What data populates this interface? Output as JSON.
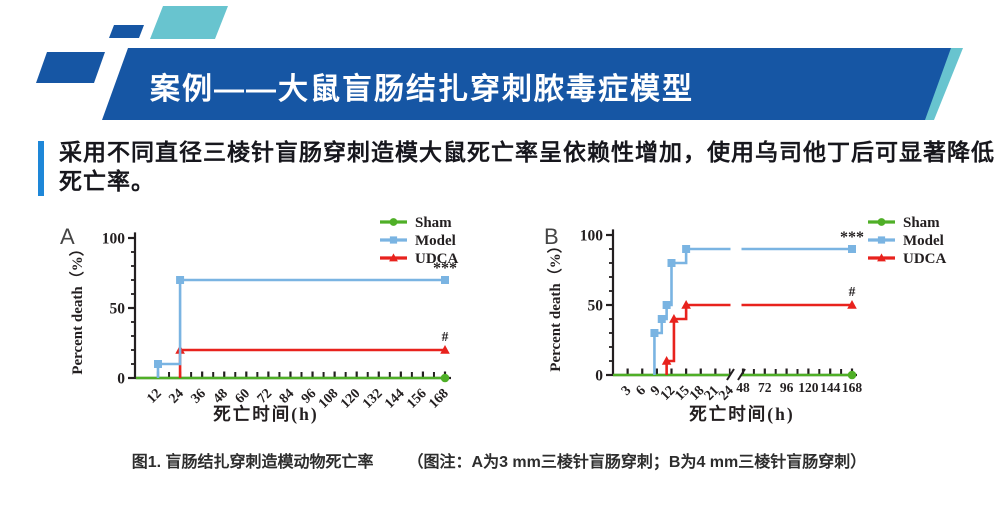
{
  "theme": {
    "banner_blue": "#1656a4",
    "teal": "#68c4cf",
    "accent_blue": "#1e87d8",
    "intro_text_color": "#17171d",
    "axis_color": "#231f20",
    "caption_color": "#2d2d2d",
    "sham_green": "#4faf27",
    "model_blue": "#7ab4e2",
    "udca_red": "#e8221d"
  },
  "header": {
    "title": "案例——大鼠盲肠结扎穿刺脓毒症模型"
  },
  "intro": {
    "line1": "采用不同直径三棱针盲肠穿刺造模大鼠死亡率呈依赖性增加，使用乌司他丁后可显著降低",
    "line2": "死亡率。"
  },
  "figure": {
    "caption_title": "图1. 盲肠结扎穿刺造模动物死亡率",
    "caption_note": "（图注：A为3 mm三棱针盲肠穿刺；B为4 mm三棱针盲肠穿刺）"
  },
  "chart_data": [
    {
      "panel": "A",
      "type": "line",
      "subtype": "step-survival",
      "xlabel": "死亡时间(h)",
      "ylabel": "Percent death（%）",
      "ylim": [
        0,
        100
      ],
      "yticks": [
        0,
        50,
        100
      ],
      "y_minor_step": 10,
      "axis_break": false,
      "x_segments": [
        {
          "range": [
            12,
            168
          ],
          "ticks_labeled": [
            12,
            24,
            36,
            48,
            60,
            72,
            84,
            96,
            108,
            120,
            132,
            144,
            156,
            168
          ],
          "ticks_unlabeled": [
            18,
            30,
            42,
            54,
            66,
            78,
            90,
            102,
            114,
            126,
            138,
            150,
            162
          ],
          "labels_rotated": true
        }
      ],
      "legend": {
        "position": "top-right",
        "entries": [
          "Sham",
          "Model",
          "UDCA"
        ]
      },
      "series": [
        {
          "name": "Sham",
          "color": "#4faf27",
          "marker": "circle",
          "steps": [
            [
              0,
              0
            ],
            [
              168,
              0
            ]
          ],
          "markers": [
            [
              168,
              0
            ]
          ],
          "final_value": 0
        },
        {
          "name": "UDCA",
          "color": "#e8221d",
          "marker": "triangle",
          "steps": [
            [
              24,
              0
            ],
            [
              24,
              20
            ],
            [
              168,
              20
            ]
          ],
          "markers": [
            [
              24,
              20
            ],
            [
              168,
              20
            ]
          ],
          "final_value": 20,
          "annotation": "#"
        },
        {
          "name": "Model",
          "color": "#7ab4e2",
          "marker": "square",
          "steps": [
            [
              12,
              0
            ],
            [
              12,
              10
            ],
            [
              24,
              10
            ],
            [
              24,
              70
            ],
            [
              168,
              70
            ]
          ],
          "markers": [
            [
              12,
              10
            ],
            [
              24,
              70
            ],
            [
              168,
              70
            ]
          ],
          "final_value": 70,
          "annotation": "***"
        }
      ]
    },
    {
      "panel": "B",
      "type": "line",
      "subtype": "step-survival",
      "xlabel": "死亡时间(h)",
      "ylabel": "Percent death（%）",
      "ylim": [
        0,
        100
      ],
      "yticks": [
        0,
        50,
        100
      ],
      "y_minor_step": 10,
      "axis_break": true,
      "x_segments": [
        {
          "range": [
            0,
            24
          ],
          "ticks_labeled": [
            3,
            6,
            9,
            12,
            15,
            18,
            21,
            24
          ],
          "ticks_unlabeled": [],
          "labels_rotated": true
        },
        {
          "range": [
            48,
            168
          ],
          "ticks_labeled": [
            48,
            72,
            96,
            120,
            144,
            168
          ],
          "ticks_unlabeled": [
            60,
            84,
            108,
            132,
            156
          ],
          "labels_rotated": false
        }
      ],
      "legend": {
        "position": "top-right",
        "entries": [
          "Sham",
          "Model",
          "UDCA"
        ]
      },
      "series": [
        {
          "name": "Sham",
          "color": "#4faf27",
          "marker": "circle",
          "steps": [
            [
              0,
              0
            ],
            [
              168,
              0
            ]
          ],
          "markers": [
            [
              168,
              0
            ]
          ],
          "final_value": 0
        },
        {
          "name": "UDCA",
          "color": "#e8221d",
          "marker": "triangle",
          "steps": [
            [
              11,
              0
            ],
            [
              11,
              10
            ],
            [
              12.5,
              10
            ],
            [
              12.5,
              40
            ],
            [
              15,
              40
            ],
            [
              15,
              50
            ],
            [
              168,
              50
            ]
          ],
          "markers": [
            [
              11,
              10
            ],
            [
              12.5,
              40
            ],
            [
              15,
              50
            ],
            [
              168,
              50
            ]
          ],
          "final_value": 50,
          "annotation": "#"
        },
        {
          "name": "Model",
          "color": "#7ab4e2",
          "marker": "square",
          "steps": [
            [
              8.5,
              0
            ],
            [
              8.5,
              30
            ],
            [
              10,
              30
            ],
            [
              10,
              40
            ],
            [
              11,
              40
            ],
            [
              11,
              50
            ],
            [
              12,
              50
            ],
            [
              12,
              80
            ],
            [
              15,
              80
            ],
            [
              15,
              90
            ],
            [
              168,
              90
            ]
          ],
          "markers": [
            [
              8.5,
              30
            ],
            [
              10,
              40
            ],
            [
              11,
              50
            ],
            [
              12,
              80
            ],
            [
              15,
              90
            ],
            [
              168,
              90
            ]
          ],
          "final_value": 90,
          "annotation": "***"
        }
      ]
    }
  ]
}
